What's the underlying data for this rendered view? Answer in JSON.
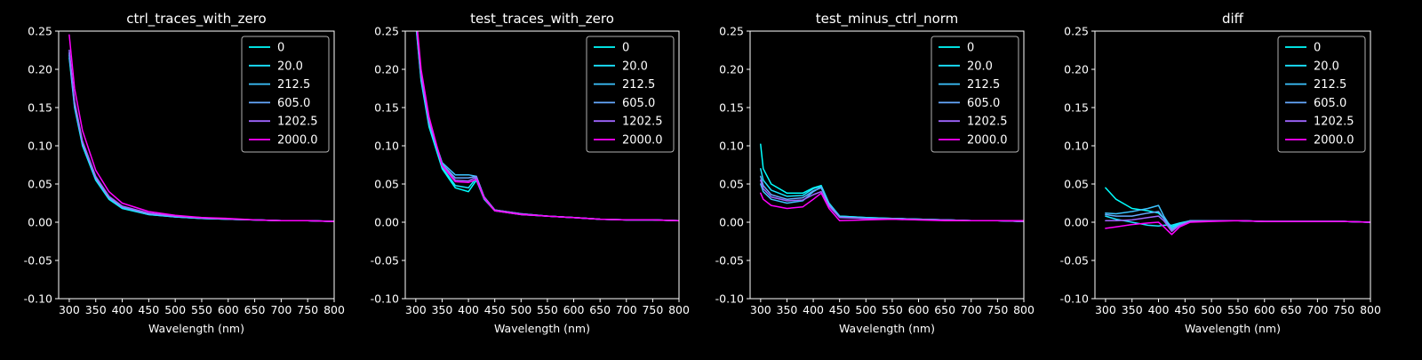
{
  "colors": {
    "background": "#000000",
    "foreground": "#ffffff",
    "legend_edge": "#bbbbbb"
  },
  "chart_data": [
    {
      "type": "line",
      "title": "ctrl_traces_with_zero",
      "xlabel": "Wavelength (nm)",
      "ylabel": "",
      "xlim": [
        280,
        800
      ],
      "ylim": [
        -0.1,
        0.25
      ],
      "xticks": [
        300,
        350,
        400,
        450,
        500,
        550,
        600,
        650,
        700,
        750,
        800
      ],
      "yticks": [
        -0.1,
        -0.05,
        0.0,
        0.05,
        0.1,
        0.15,
        0.2,
        0.25
      ],
      "legend_position": "top-right",
      "x": [
        300,
        310,
        325,
        350,
        375,
        400,
        450,
        500,
        550,
        600,
        650,
        700,
        750,
        800
      ],
      "series": [
        {
          "name": "0",
          "color": "#00ffff",
          "values": [
            0.215,
            0.15,
            0.1,
            0.055,
            0.03,
            0.018,
            0.01,
            0.007,
            0.005,
            0.004,
            0.003,
            0.002,
            0.002,
            0.001
          ]
        },
        {
          "name": "20.0",
          "color": "#1ae5ff",
          "values": [
            0.218,
            0.152,
            0.102,
            0.056,
            0.031,
            0.019,
            0.01,
            0.007,
            0.005,
            0.004,
            0.003,
            0.002,
            0.002,
            0.001
          ]
        },
        {
          "name": "212.5",
          "color": "#3cc3ff",
          "values": [
            0.22,
            0.153,
            0.103,
            0.057,
            0.032,
            0.019,
            0.011,
            0.007,
            0.005,
            0.004,
            0.003,
            0.002,
            0.002,
            0.001
          ]
        },
        {
          "name": "605.0",
          "color": "#66aaff",
          "values": [
            0.222,
            0.155,
            0.104,
            0.058,
            0.032,
            0.02,
            0.011,
            0.008,
            0.005,
            0.004,
            0.003,
            0.002,
            0.002,
            0.001
          ]
        },
        {
          "name": "1202.5",
          "color": "#a066ff",
          "values": [
            0.225,
            0.158,
            0.106,
            0.06,
            0.034,
            0.021,
            0.012,
            0.008,
            0.006,
            0.004,
            0.003,
            0.002,
            0.002,
            0.001
          ]
        },
        {
          "name": "2000.0",
          "color": "#ff00ff",
          "values": [
            0.245,
            0.175,
            0.12,
            0.068,
            0.04,
            0.025,
            0.014,
            0.009,
            0.006,
            0.005,
            0.003,
            0.002,
            0.002,
            0.001
          ]
        }
      ]
    },
    {
      "type": "line",
      "title": "test_traces_with_zero",
      "xlabel": "Wavelength (nm)",
      "ylabel": "",
      "xlim": [
        280,
        800
      ],
      "ylim": [
        -0.1,
        0.25
      ],
      "xticks": [
        300,
        350,
        400,
        450,
        500,
        550,
        600,
        650,
        700,
        750,
        800
      ],
      "yticks": [
        -0.1,
        -0.05,
        0.0,
        0.05,
        0.1,
        0.15,
        0.2,
        0.25
      ],
      "legend_position": "top-right",
      "x": [
        300,
        310,
        325,
        350,
        375,
        400,
        415,
        430,
        450,
        500,
        550,
        600,
        650,
        700,
        750,
        800
      ],
      "series": [
        {
          "name": "0",
          "color": "#00ffff",
          "values": [
            0.26,
            0.185,
            0.125,
            0.07,
            0.045,
            0.04,
            0.055,
            0.03,
            0.015,
            0.01,
            0.008,
            0.006,
            0.004,
            0.003,
            0.003,
            0.002
          ]
        },
        {
          "name": "20.0",
          "color": "#1ae5ff",
          "values": [
            0.262,
            0.187,
            0.127,
            0.072,
            0.048,
            0.045,
            0.058,
            0.032,
            0.015,
            0.01,
            0.008,
            0.006,
            0.004,
            0.003,
            0.003,
            0.002
          ]
        },
        {
          "name": "212.5",
          "color": "#3cc3ff",
          "values": [
            0.265,
            0.19,
            0.13,
            0.078,
            0.062,
            0.062,
            0.06,
            0.033,
            0.016,
            0.011,
            0.008,
            0.006,
            0.004,
            0.003,
            0.003,
            0.002
          ]
        },
        {
          "name": "605.0",
          "color": "#66aaff",
          "values": [
            0.266,
            0.191,
            0.131,
            0.076,
            0.058,
            0.058,
            0.06,
            0.033,
            0.016,
            0.011,
            0.008,
            0.006,
            0.004,
            0.003,
            0.003,
            0.002
          ]
        },
        {
          "name": "1202.5",
          "color": "#a066ff",
          "values": [
            0.268,
            0.193,
            0.133,
            0.075,
            0.055,
            0.054,
            0.059,
            0.033,
            0.016,
            0.011,
            0.008,
            0.006,
            0.004,
            0.003,
            0.003,
            0.002
          ]
        },
        {
          "name": "2000.0",
          "color": "#ff00ff",
          "values": [
            0.275,
            0.2,
            0.138,
            0.074,
            0.053,
            0.052,
            0.056,
            0.031,
            0.015,
            0.01,
            0.008,
            0.006,
            0.004,
            0.003,
            0.003,
            0.002
          ]
        }
      ]
    },
    {
      "type": "line",
      "title": "test_minus_ctrl_norm",
      "xlabel": "Wavelength (nm)",
      "ylabel": "",
      "xlim": [
        280,
        800
      ],
      "ylim": [
        -0.1,
        0.25
      ],
      "xticks": [
        300,
        350,
        400,
        450,
        500,
        550,
        600,
        650,
        700,
        750,
        800
      ],
      "yticks": [
        -0.1,
        -0.05,
        0.0,
        0.05,
        0.1,
        0.15,
        0.2,
        0.25
      ],
      "legend_position": "top-right",
      "x": [
        300,
        305,
        320,
        350,
        380,
        400,
        415,
        430,
        450,
        500,
        550,
        600,
        650,
        700,
        750,
        800
      ],
      "series": [
        {
          "name": "0",
          "color": "#00ffff",
          "values": [
            0.102,
            0.07,
            0.05,
            0.038,
            0.038,
            0.045,
            0.048,
            0.025,
            0.008,
            0.006,
            0.005,
            0.004,
            0.003,
            0.002,
            0.002,
            0.001
          ]
        },
        {
          "name": "20.0",
          "color": "#1ae5ff",
          "values": [
            0.07,
            0.055,
            0.042,
            0.034,
            0.035,
            0.044,
            0.047,
            0.024,
            0.008,
            0.006,
            0.005,
            0.004,
            0.003,
            0.002,
            0.002,
            0.001
          ]
        },
        {
          "name": "212.5",
          "color": "#3cc3ff",
          "values": [
            0.05,
            0.04,
            0.03,
            0.025,
            0.028,
            0.04,
            0.046,
            0.024,
            0.007,
            0.005,
            0.005,
            0.004,
            0.003,
            0.002,
            0.002,
            0.001
          ]
        },
        {
          "name": "605.0",
          "color": "#66aaff",
          "values": [
            0.06,
            0.048,
            0.036,
            0.03,
            0.032,
            0.041,
            0.045,
            0.023,
            0.007,
            0.005,
            0.005,
            0.004,
            0.003,
            0.002,
            0.002,
            0.001
          ]
        },
        {
          "name": "1202.5",
          "color": "#a066ff",
          "values": [
            0.055,
            0.044,
            0.033,
            0.028,
            0.029,
            0.036,
            0.04,
            0.021,
            0.006,
            0.005,
            0.004,
            0.003,
            0.003,
            0.002,
            0.002,
            0.001
          ]
        },
        {
          "name": "2000.0",
          "color": "#ff00ff",
          "values": [
            0.038,
            0.03,
            0.022,
            0.018,
            0.02,
            0.03,
            0.038,
            0.018,
            0.002,
            0.003,
            0.004,
            0.003,
            0.002,
            0.002,
            0.002,
            0.002
          ]
        }
      ]
    },
    {
      "type": "line",
      "title": "diff",
      "xlabel": "Wavelength (nm)",
      "ylabel": "",
      "xlim": [
        280,
        800
      ],
      "ylim": [
        -0.1,
        0.25
      ],
      "xticks": [
        300,
        350,
        400,
        450,
        500,
        550,
        600,
        650,
        700,
        750,
        800
      ],
      "yticks": [
        -0.1,
        -0.05,
        0.0,
        0.05,
        0.1,
        0.15,
        0.2,
        0.25
      ],
      "legend_position": "top-right",
      "x": [
        300,
        320,
        350,
        380,
        400,
        410,
        425,
        440,
        460,
        500,
        550,
        600,
        650,
        700,
        750,
        800
      ],
      "series": [
        {
          "name": "0",
          "color": "#00ffff",
          "values": [
            0.045,
            0.03,
            0.018,
            0.015,
            0.012,
            0.005,
            -0.006,
            -0.002,
            0.002,
            0.002,
            0.002,
            0.001,
            0.001,
            0.001,
            0.001,
            0.0
          ]
        },
        {
          "name": "20.0",
          "color": "#1ae5ff",
          "values": [
            0.008,
            0.004,
            0.0,
            -0.004,
            -0.005,
            -0.004,
            -0.004,
            -0.001,
            0.002,
            0.002,
            0.002,
            0.001,
            0.001,
            0.001,
            0.001,
            0.0
          ]
        },
        {
          "name": "212.5",
          "color": "#3cc3ff",
          "values": [
            0.012,
            0.011,
            0.014,
            0.018,
            0.022,
            0.008,
            -0.008,
            -0.003,
            0.002,
            0.002,
            0.002,
            0.001,
            0.001,
            0.001,
            0.001,
            0.0
          ]
        },
        {
          "name": "605.0",
          "color": "#66aaff",
          "values": [
            0.01,
            0.008,
            0.008,
            0.012,
            0.014,
            0.005,
            -0.01,
            -0.004,
            0.002,
            0.002,
            0.002,
            0.001,
            0.001,
            0.001,
            0.001,
            0.0
          ]
        },
        {
          "name": "1202.5",
          "color": "#a066ff",
          "values": [
            0.002,
            0.002,
            0.003,
            0.006,
            0.008,
            0.002,
            -0.012,
            -0.004,
            0.001,
            0.002,
            0.002,
            0.001,
            0.001,
            0.001,
            0.001,
            0.0
          ]
        },
        {
          "name": "2000.0",
          "color": "#ff00ff",
          "values": [
            -0.008,
            -0.006,
            -0.003,
            -0.001,
            0.0,
            -0.006,
            -0.016,
            -0.006,
            0.0,
            0.001,
            0.002,
            0.001,
            0.001,
            0.001,
            0.001,
            0.0
          ]
        }
      ]
    }
  ]
}
